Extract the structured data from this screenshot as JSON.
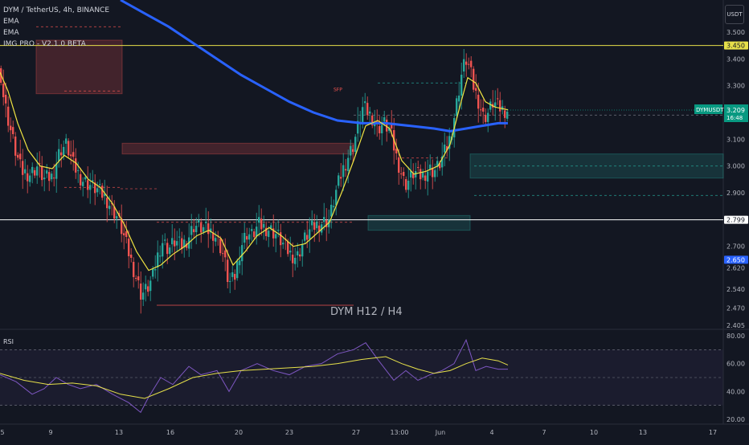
{
  "header": {
    "symbol_title": "DYM / TetherUS, 4h, BINANCE",
    "indicators": [
      "EMA",
      "EMA",
      "IMG PRO - V2.1.0 BETA"
    ],
    "currency_button": "USDT"
  },
  "annotations": {
    "sfp_label": "SFP",
    "chart_caption": "DYM H12 / H4"
  },
  "price_labels": {
    "symbol_tag": "DYMUSDT",
    "last_price": "3.209",
    "countdown": "16:48",
    "yellow_level": "3.450",
    "white_level": "2.799",
    "blue_level": "2.650"
  },
  "rsi_panel": {
    "label": "RSI",
    "ticks": [
      "80.00",
      "60.00",
      "40.00",
      "20.00"
    ]
  },
  "colors": {
    "background": "#131722",
    "bull": "#26a69a",
    "bear": "#ef5350",
    "ema_fast": "#f0e442",
    "ema_slow": "#2962ff",
    "rsi_line": "#7e57c2",
    "rsi_ma": "#e6e04a",
    "level_yellow": "#e6e04a",
    "level_white": "#ffffff"
  },
  "chart_data": {
    "type": "candlestick",
    "symbol": "DYM / TetherUS",
    "interval": "4h",
    "exchange": "BINANCE",
    "price_axis_ticks": [
      "3.500",
      "3.400",
      "3.300",
      "3.200",
      "3.100",
      "3.000",
      "2.900",
      "2.800",
      "2.700",
      "2.620",
      "2.540",
      "2.470",
      "2.405"
    ],
    "price_axis_range": [
      2.39,
      3.62
    ],
    "x_axis_ticks": [
      "5",
      "9",
      "13",
      "16",
      "20",
      "23",
      "27",
      "13:00",
      "Jun",
      "4",
      "7",
      "10",
      "13",
      "17"
    ],
    "candle_path": [
      [
        0,
        3.38
      ],
      [
        5,
        3.25
      ],
      [
        13,
        3.14
      ],
      [
        20,
        3.05
      ],
      [
        27,
        2.98
      ],
      [
        38,
        2.97
      ],
      [
        47,
        3.0
      ],
      [
        55,
        2.95
      ],
      [
        65,
        2.96
      ],
      [
        75,
        3.06
      ],
      [
        83,
        3.08
      ],
      [
        92,
        3.0
      ],
      [
        102,
        2.95
      ],
      [
        112,
        2.93
      ],
      [
        122,
        2.91
      ],
      [
        132,
        2.88
      ],
      [
        140,
        2.84
      ],
      [
        146,
        2.81
      ],
      [
        152,
        2.76
      ],
      [
        160,
        2.68
      ],
      [
        168,
        2.6
      ],
      [
        176,
        2.52
      ],
      [
        183,
        2.54
      ],
      [
        190,
        2.58
      ],
      [
        196,
        2.66
      ],
      [
        202,
        2.72
      ],
      [
        210,
        2.69
      ],
      [
        218,
        2.72
      ],
      [
        226,
        2.7
      ],
      [
        234,
        2.73
      ],
      [
        242,
        2.78
      ],
      [
        250,
        2.77
      ],
      [
        258,
        2.76
      ],
      [
        266,
        2.75
      ],
      [
        272,
        2.72
      ],
      [
        279,
        2.66
      ],
      [
        285,
        2.56
      ],
      [
        292,
        2.58
      ],
      [
        300,
        2.7
      ],
      [
        307,
        2.75
      ],
      [
        314,
        2.74
      ],
      [
        322,
        2.78
      ],
      [
        330,
        2.77
      ],
      [
        338,
        2.76
      ],
      [
        346,
        2.74
      ],
      [
        354,
        2.7
      ],
      [
        362,
        2.67
      ],
      [
        370,
        2.66
      ],
      [
        378,
        2.72
      ],
      [
        386,
        2.76
      ],
      [
        394,
        2.78
      ],
      [
        402,
        2.79
      ],
      [
        410,
        2.8
      ],
      [
        418,
        2.9
      ],
      [
        426,
        2.98
      ],
      [
        434,
        3.04
      ],
      [
        440,
        3.08
      ],
      [
        446,
        3.15
      ],
      [
        452,
        3.22
      ],
      [
        458,
        3.2
      ],
      [
        464,
        3.18
      ],
      [
        470,
        3.14
      ],
      [
        478,
        3.16
      ],
      [
        486,
        3.13
      ],
      [
        492,
        3.05
      ],
      [
        498,
        2.99
      ],
      [
        504,
        2.93
      ],
      [
        510,
        2.95
      ],
      [
        516,
        2.98
      ],
      [
        522,
        2.96
      ],
      [
        528,
        2.97
      ],
      [
        534,
        2.99
      ],
      [
        540,
        2.98
      ],
      [
        546,
        3.0
      ],
      [
        552,
        3.04
      ],
      [
        558,
        3.08
      ],
      [
        564,
        3.16
      ],
      [
        570,
        3.26
      ],
      [
        575,
        3.35
      ],
      [
        580,
        3.4
      ],
      [
        585,
        3.36
      ],
      [
        590,
        3.29
      ],
      [
        596,
        3.24
      ],
      [
        602,
        3.18
      ],
      [
        608,
        3.2
      ],
      [
        614,
        3.24
      ],
      [
        620,
        3.22
      ],
      [
        626,
        3.21
      ],
      [
        632,
        3.209
      ]
    ],
    "ema_fast_path": [
      [
        0,
        3.35
      ],
      [
        10,
        3.28
      ],
      [
        22,
        3.16
      ],
      [
        35,
        3.06
      ],
      [
        50,
        3.0
      ],
      [
        65,
        2.99
      ],
      [
        80,
        3.04
      ],
      [
        95,
        3.01
      ],
      [
        110,
        2.95
      ],
      [
        125,
        2.92
      ],
      [
        140,
        2.86
      ],
      [
        155,
        2.78
      ],
      [
        170,
        2.68
      ],
      [
        185,
        2.61
      ],
      [
        200,
        2.63
      ],
      [
        215,
        2.67
      ],
      [
        230,
        2.7
      ],
      [
        245,
        2.74
      ],
      [
        260,
        2.76
      ],
      [
        275,
        2.73
      ],
      [
        290,
        2.63
      ],
      [
        305,
        2.68
      ],
      [
        320,
        2.74
      ],
      [
        335,
        2.77
      ],
      [
        350,
        2.74
      ],
      [
        365,
        2.7
      ],
      [
        380,
        2.71
      ],
      [
        395,
        2.75
      ],
      [
        410,
        2.79
      ],
      [
        425,
        2.9
      ],
      [
        440,
        3.02
      ],
      [
        455,
        3.15
      ],
      [
        470,
        3.17
      ],
      [
        485,
        3.14
      ],
      [
        500,
        3.02
      ],
      [
        515,
        2.97
      ],
      [
        530,
        2.98
      ],
      [
        545,
        3.0
      ],
      [
        560,
        3.08
      ],
      [
        572,
        3.22
      ],
      [
        582,
        3.33
      ],
      [
        592,
        3.31
      ],
      [
        604,
        3.24
      ],
      [
        616,
        3.22
      ],
      [
        632,
        3.21
      ]
    ],
    "ema_slow_path": [
      [
        150,
        3.62
      ],
      [
        180,
        3.57
      ],
      [
        210,
        3.52
      ],
      [
        240,
        3.46
      ],
      [
        270,
        3.4
      ],
      [
        300,
        3.34
      ],
      [
        330,
        3.29
      ],
      [
        360,
        3.24
      ],
      [
        390,
        3.2
      ],
      [
        420,
        3.17
      ],
      [
        450,
        3.16
      ],
      [
        480,
        3.16
      ],
      [
        510,
        3.15
      ],
      [
        540,
        3.14
      ],
      [
        560,
        3.13
      ],
      [
        580,
        3.14
      ],
      [
        600,
        3.15
      ],
      [
        620,
        3.16
      ],
      [
        632,
        3.16
      ]
    ],
    "horizontal_levels": [
      {
        "price": 3.45,
        "style": "solid",
        "color": "yellow"
      },
      {
        "price": 2.799,
        "style": "solid",
        "color": "white"
      }
    ],
    "zones": [
      {
        "kind": "supply",
        "x0": 45,
        "x1": 152,
        "price_top": 3.47,
        "price_bottom": 3.27
      },
      {
        "kind": "supply",
        "x0": 152,
        "x1": 440,
        "price_top": 3.085,
        "price_bottom": 3.045
      },
      {
        "kind": "demand",
        "x0": 458,
        "x1": 585,
        "price_top": 2.815,
        "price_bottom": 2.76
      },
      {
        "kind": "demand",
        "x0": 585,
        "x1": 900,
        "price_top": 3.045,
        "price_bottom": 2.955
      }
    ],
    "rsi": {
      "levels": [
        70,
        50,
        30
      ],
      "range": [
        20,
        80
      ],
      "value_path": [
        [
          0,
          52
        ],
        [
          20,
          47
        ],
        [
          40,
          38
        ],
        [
          55,
          42
        ],
        [
          70,
          50
        ],
        [
          85,
          45
        ],
        [
          100,
          42
        ],
        [
          120,
          45
        ],
        [
          140,
          38
        ],
        [
          160,
          32
        ],
        [
          175,
          25
        ],
        [
          185,
          36
        ],
        [
          200,
          50
        ],
        [
          215,
          45
        ],
        [
          235,
          58
        ],
        [
          250,
          52
        ],
        [
          270,
          55
        ],
        [
          285,
          40
        ],
        [
          300,
          55
        ],
        [
          320,
          60
        ],
        [
          340,
          55
        ],
        [
          360,
          52
        ],
        [
          380,
          58
        ],
        [
          400,
          60
        ],
        [
          420,
          67
        ],
        [
          440,
          70
        ],
        [
          455,
          75
        ],
        [
          470,
          63
        ],
        [
          490,
          48
        ],
        [
          505,
          55
        ],
        [
          520,
          48
        ],
        [
          535,
          52
        ],
        [
          550,
          55
        ],
        [
          565,
          60
        ],
        [
          580,
          77
        ],
        [
          592,
          55
        ],
        [
          605,
          58
        ],
        [
          620,
          56
        ],
        [
          632,
          56
        ]
      ],
      "ma_path": [
        [
          0,
          53
        ],
        [
          30,
          48
        ],
        [
          60,
          45
        ],
        [
          90,
          46
        ],
        [
          120,
          44
        ],
        [
          150,
          38
        ],
        [
          180,
          35
        ],
        [
          210,
          42
        ],
        [
          240,
          50
        ],
        [
          270,
          53
        ],
        [
          300,
          55
        ],
        [
          330,
          56
        ],
        [
          360,
          57
        ],
        [
          390,
          58
        ],
        [
          420,
          60
        ],
        [
          450,
          63
        ],
        [
          480,
          65
        ],
        [
          500,
          60
        ],
        [
          520,
          56
        ],
        [
          540,
          53
        ],
        [
          560,
          55
        ],
        [
          580,
          60
        ],
        [
          600,
          64
        ],
        [
          620,
          62
        ],
        [
          632,
          59
        ]
      ]
    }
  }
}
